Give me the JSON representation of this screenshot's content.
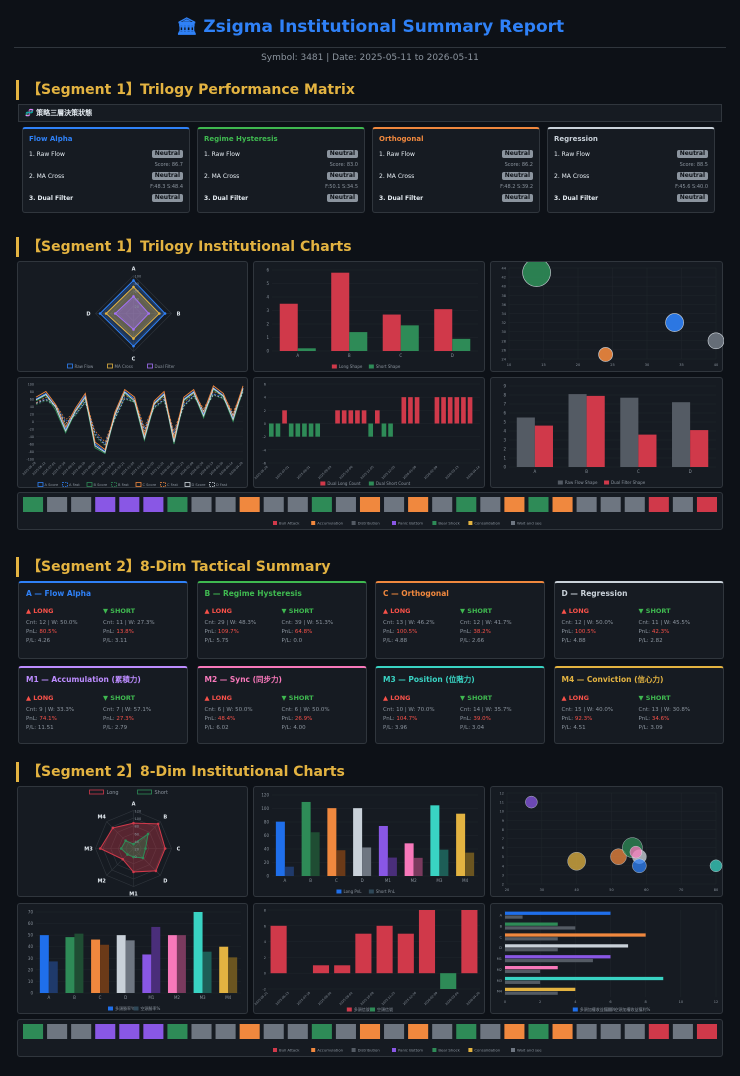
{
  "header": {
    "icon": "🏛",
    "title": "Zsigma Institutional Summary Report",
    "subline": "Symbol: 3481 | Date: 2025-05-11 to 2026-05-11"
  },
  "seg1": {
    "title1": "【Segment 1】Trilogy Performance Matrix",
    "strip_label": "🧬 策略三層決策狀態",
    "cards": [
      {
        "title": "Flow Alpha",
        "color": "#2f81f7",
        "r1": "1. Raw Flow",
        "b1": "Neutral",
        "s1": "Score: 86.7",
        "r2": "2. MA Cross",
        "b2": "Neutral",
        "s2": "F:48.3 S:48.4",
        "r3": "3. Dual Filter",
        "b3": "Neutral"
      },
      {
        "title": "Regime Hysteresis",
        "color": "#3fb950",
        "r1": "1. Raw Flow",
        "b1": "Neutral",
        "s1": "Score: 83.0",
        "r2": "2. MA Cross",
        "b2": "Neutral",
        "s2": "F:50.1 S:34.5",
        "r3": "3. Dual Filter",
        "b3": "Neutral"
      },
      {
        "title": "Orthogonal",
        "color": "#f0883e",
        "r1": "1. Raw Flow",
        "b1": "Neutral",
        "s1": "Score: 86.2",
        "r2": "2. MA Cross",
        "b2": "Neutral",
        "s2": "F:48.2 S:39.2",
        "r3": "3. Dual Filter",
        "b3": "Neutral"
      },
      {
        "title": "Regression",
        "color": "#c9d1d9",
        "r1": "1. Raw Flow",
        "b1": "Neutral",
        "s1": "Score: 88.5",
        "r2": "2. MA Cross",
        "b2": "Neutral",
        "s2": "F:45.6 S:40.0",
        "r3": "3. Dual Filter",
        "b3": "Neutral"
      }
    ],
    "title2": "【Segment 1】Trilogy Institutional Charts"
  },
  "seg2": {
    "title1": "【Segment 2】8-Dim Tactical Summary",
    "long_label": "▲ LONG",
    "short_label": "▼ SHORT",
    "cards": [
      {
        "title": "A — Flow Alpha",
        "color": "#2f81f7",
        "lc": "Cnt: 12 | W: 50.0%",
        "lp": "80.5%",
        "lf": "P/L: 4.26",
        "sc": "Cnt: 11 | W: 27.3%",
        "sp": "13.8%",
        "sf": "P/L: 3.11"
      },
      {
        "title": "B — Regime Hysteresis",
        "color": "#3fb950",
        "lc": "Cnt: 29 | W: 48.3%",
        "lp": "109.7%",
        "lf": "P/L: 5.75",
        "sc": "Cnt: 39 | W: 51.3%",
        "sp": "64.8%",
        "sf": "P/L: 0.0"
      },
      {
        "title": "C — Orthogonal",
        "color": "#f0883e",
        "lc": "Cnt: 13 | W: 46.2%",
        "lp": "100.5%",
        "lf": "P/L: 4.88",
        "sc": "Cnt: 12 | W: 41.7%",
        "sp": "38.2%",
        "sf": "P/L: 2.66"
      },
      {
        "title": "D — Regression",
        "color": "#c9d1d9",
        "lc": "Cnt: 12 | W: 50.0%",
        "lp": "100.5%",
        "lf": "P/L: 4.88",
        "sc": "Cnt: 11 | W: 45.5%",
        "sp": "42.3%",
        "sf": "P/L: 2.82"
      },
      {
        "title": "M1 — Accumulation (累積力)",
        "color": "#bc8cff",
        "lc": "Cnt: 9 | W: 33.3%",
        "lp": "74.1%",
        "lf": "P/L: 11.51",
        "sc": "Cnt: 7 | W: 57.1%",
        "sp": "27.3%",
        "sf": "P/L: 2.79"
      },
      {
        "title": "M2 — Sync (同步力)",
        "color": "#f778ba",
        "lc": "Cnt: 6 | W: 50.0%",
        "lp": "48.4%",
        "lf": "P/L: 6.02",
        "sc": "Cnt: 6 | W: 50.0%",
        "sp": "26.9%",
        "sf": "P/L: 4.00"
      },
      {
        "title": "M3 — Position (位階力)",
        "color": "#39d3c3",
        "lc": "Cnt: 10 | W: 70.0%",
        "lp": "104.7%",
        "lf": "P/L: 3.96",
        "sc": "Cnt: 14 | W: 35.7%",
        "sp": "39.0%",
        "sf": "P/L: 3.04"
      },
      {
        "title": "M4 — Conviction (信心力)",
        "color": "#e3b341",
        "lc": "Cnt: 15 | W: 40.0%",
        "lp": "92.3%",
        "lf": "P/L: 4.51",
        "sc": "Cnt: 13 | W: 30.8%",
        "sp": "34.6%",
        "sf": "P/L: 3.09"
      }
    ],
    "pnl_label": "PnL: ",
    "title2": "【Segment 2】8-Dim Institutional Charts"
  },
  "colors": {
    "red": "#d0394a",
    "green": "#2e8b57",
    "gray": "#6e7681",
    "blue": "#2f81f7",
    "orange": "#f0883e",
    "purple": "#8957e5",
    "yellow": "#e3b341",
    "teal": "#39d3c3"
  },
  "chart_data": [
    {
      "id": "c1_radar",
      "type": "radar",
      "axes": [
        "A",
        "B",
        "C",
        "D"
      ],
      "ticks": [
        "100",
        "80",
        "60",
        "40",
        "20"
      ],
      "series": [
        {
          "name": "Raw Flow",
          "values": [
            87,
            83,
            86,
            88
          ]
        },
        {
          "name": "MA Cross",
          "values": [
            70,
            68,
            66,
            72
          ]
        },
        {
          "name": "Dual Filter",
          "values": [
            45,
            40,
            42,
            48
          ]
        }
      ]
    },
    {
      "id": "c2_bar",
      "type": "bar",
      "categories": [
        "A",
        "B",
        "C",
        "D"
      ],
      "series": [
        {
          "name": "Long Shape",
          "values": [
            3.5,
            5.8,
            2.7,
            3.1
          ]
        },
        {
          "name": "Short Shape",
          "values": [
            0.2,
            1.4,
            1.9,
            0.9
          ]
        }
      ],
      "yticks": [
        "6",
        "5",
        "4",
        "3",
        "2",
        "1",
        "0"
      ]
    },
    {
      "id": "c3_scatter",
      "type": "scatter",
      "xticks": [
        "10",
        "15",
        "20",
        "25",
        "30",
        "35",
        "40"
      ],
      "yticks": [
        "44",
        "42",
        "40",
        "38",
        "36",
        "34",
        "32",
        "30",
        "28",
        "26",
        "24"
      ],
      "points": [
        {
          "x": 14,
          "y": 43,
          "r": 14,
          "c": "green"
        },
        {
          "x": 34,
          "y": 32,
          "r": 9,
          "c": "blue"
        },
        {
          "x": 40,
          "y": 28,
          "r": 8,
          "c": "gray"
        },
        {
          "x": 24,
          "y": 25,
          "r": 7,
          "c": "orange"
        }
      ]
    },
    {
      "id": "c4_line",
      "type": "line",
      "yticks": [
        "100",
        "80",
        "60",
        "40",
        "20",
        "0",
        "-20",
        "-40",
        "-60",
        "-80",
        "-100"
      ],
      "xlabels": [
        "2025-05-28",
        "2025-06-12",
        "2025-07-01",
        "2025-07-16",
        "2025-08-01",
        "2025-08-19",
        "2025-09-03",
        "2025-09-18",
        "2025-10-06",
        "2025-10-21",
        "2025-11-05",
        "2025-11-20",
        "2025-12-05",
        "2025-12-22",
        "2026-01-08",
        "2026-01-23",
        "2026-02-09",
        "2026-02-26",
        "2026-03-13",
        "2026-03-30",
        "2026-04-14",
        "2026-04-29"
      ],
      "series": [
        {
          "name": "A Score",
          "c": "blue",
          "dash": false,
          "values": [
            60,
            75,
            40,
            -20,
            30,
            70,
            -60,
            -80,
            20,
            80,
            60,
            -40,
            50,
            75,
            -50,
            60,
            80,
            20,
            90,
            70,
            10,
            90
          ]
        },
        {
          "name": "A Fast",
          "c": "blue",
          "dash": true,
          "values": [
            50,
            60,
            45,
            0,
            20,
            55,
            -30,
            -60,
            10,
            65,
            55,
            -20,
            40,
            60,
            -30,
            45,
            70,
            30,
            75,
            65,
            20,
            80
          ]
        },
        {
          "name": "B Score",
          "c": "green",
          "dash": false,
          "values": [
            55,
            70,
            30,
            -30,
            25,
            60,
            -70,
            -85,
            15,
            75,
            50,
            -50,
            45,
            70,
            -60,
            55,
            75,
            10,
            85,
            65,
            0,
            85
          ]
        },
        {
          "name": "B Fast",
          "c": "green",
          "dash": true,
          "values": [
            45,
            55,
            40,
            -10,
            15,
            50,
            -40,
            -65,
            5,
            60,
            50,
            -30,
            35,
            55,
            -40,
            40,
            65,
            25,
            70,
            60,
            15,
            75
          ]
        },
        {
          "name": "C Score",
          "c": "orange",
          "dash": false,
          "values": [
            65,
            80,
            45,
            -15,
            35,
            75,
            -55,
            -75,
            25,
            85,
            65,
            -35,
            55,
            80,
            -45,
            65,
            85,
            25,
            95,
            75,
            15,
            95
          ]
        },
        {
          "name": "C Fast",
          "c": "orange",
          "dash": true,
          "values": [
            50,
            65,
            45,
            5,
            25,
            60,
            -25,
            -55,
            15,
            70,
            60,
            -15,
            45,
            65,
            -25,
            50,
            75,
            35,
            80,
            70,
            25,
            85
          ]
        },
        {
          "name": "D Score",
          "c": "white",
          "dash": false,
          "values": [
            58,
            72,
            38,
            -25,
            28,
            65,
            -65,
            -82,
            18,
            78,
            55,
            -45,
            48,
            72,
            -55,
            58,
            78,
            15,
            88,
            68,
            5,
            88
          ]
        },
        {
          "name": "D Fast",
          "c": "white",
          "dash": true,
          "values": [
            48,
            58,
            42,
            -5,
            18,
            52,
            -35,
            -62,
            8,
            62,
            52,
            -25,
            38,
            58,
            -35,
            42,
            68,
            28,
            72,
            62,
            18,
            78
          ]
        }
      ]
    },
    {
      "id": "c5_bar",
      "type": "bar",
      "xlabels": [
        "2025-05-28",
        "2025-07-01",
        "2025-08-01",
        "2025-09-03",
        "2025-10-06",
        "2025-11-05",
        "2025-12-05",
        "2026-01-08",
        "2026-02-09",
        "2026-03-13",
        "2026-04-14"
      ],
      "series": [
        {
          "name": "Dual Long Count",
          "values": [
            0,
            0,
            2,
            0,
            0,
            0,
            0,
            0,
            0,
            0,
            2,
            2,
            2,
            2,
            2,
            0,
            2,
            0,
            0,
            0,
            4,
            4,
            4,
            0,
            0,
            4,
            4,
            4,
            4,
            4,
            4,
            0
          ]
        },
        {
          "name": "Dual Short Count",
          "values": [
            -2,
            -2,
            0,
            -2,
            -2,
            -2,
            -2,
            -2,
            0,
            0,
            0,
            0,
            0,
            0,
            0,
            -2,
            0,
            -2,
            -2,
            0,
            0,
            0,
            0,
            0,
            0,
            0,
            0,
            0,
            0,
            0,
            0,
            0
          ]
        }
      ],
      "yticks": [
        "6",
        "4",
        "2",
        "0",
        "-2",
        "-4",
        "-6"
      ]
    },
    {
      "id": "c6_bar",
      "type": "bar",
      "categories": [
        "A",
        "B",
        "C",
        "D"
      ],
      "series": [
        {
          "name": "Raw Flow Shape",
          "values": [
            5.5,
            8.1,
            7.7,
            7.2
          ]
        },
        {
          "name": "Dual Filter Shape",
          "values": [
            4.6,
            7.9,
            3.6,
            4.1
          ]
        }
      ],
      "yticks": [
        "9",
        "8",
        "7",
        "6",
        "5",
        "4",
        "3",
        "2",
        "1",
        "0"
      ]
    },
    {
      "id": "strip1",
      "type": "heatmap",
      "cells": [
        "green",
        "gray",
        "gray",
        "purple",
        "purple",
        "purple",
        "green",
        "gray",
        "gray",
        "orange",
        "gray",
        "gray",
        "green",
        "gray",
        "orange",
        "gray",
        "orange",
        "gray",
        "green",
        "gray",
        "orange",
        "green",
        "orange",
        "gray",
        "gray",
        "gray",
        "red",
        "gray",
        "red"
      ],
      "legend": [
        "Bull Attack",
        "Accumulation",
        "Distribution",
        "Panic Bottom",
        "Bear Shock",
        "Consolidation",
        "Wait and see"
      ]
    },
    {
      "id": "c7_radar",
      "type": "radar",
      "axes": [
        "A",
        "B",
        "C",
        "D",
        "M1",
        "M2",
        "M3",
        "M4"
      ],
      "ticks": [
        "120",
        "100",
        "80",
        "60",
        "40",
        "20",
        "0"
      ],
      "series": [
        {
          "name": "Long",
          "values": [
            80,
            110,
            100,
            100,
            74,
            48,
            105,
            92
          ]
        },
        {
          "name": "Short",
          "values": [
            14,
            65,
            38,
            42,
            27,
            27,
            39,
            35
          ]
        }
      ]
    },
    {
      "id": "c8_bar",
      "type": "bar",
      "categories": [
        "A",
        "B",
        "C",
        "D",
        "M1",
        "M2",
        "M3",
        "M4"
      ],
      "series": [
        {
          "name": "Long PnL",
          "values": [
            80.5,
            109.7,
            100.5,
            100.5,
            74.1,
            48.4,
            104.7,
            92.3
          ]
        },
        {
          "name": "Short PnL",
          "values": [
            13.8,
            64.8,
            38.2,
            42.3,
            27.3,
            26.9,
            39.0,
            34.6
          ]
        }
      ],
      "yticks": [
        "120",
        "100",
        "80",
        "60",
        "40",
        "20",
        "0"
      ]
    },
    {
      "id": "c9_scatter",
      "type": "scatter",
      "xticks": [
        "20",
        "30",
        "40",
        "50",
        "60",
        "70",
        "80"
      ],
      "yticks": [
        "12",
        "11",
        "10",
        "9",
        "8",
        "7",
        "6",
        "5",
        "4",
        "3",
        "2"
      ],
      "points": [
        {
          "x": 27,
          "y": 11,
          "r": 6,
          "c": "purple"
        },
        {
          "x": 40,
          "y": 4.5,
          "r": 9,
          "c": "yellow"
        },
        {
          "x": 52,
          "y": 5,
          "r": 8,
          "c": "orange"
        },
        {
          "x": 56,
          "y": 6,
          "r": 10,
          "c": "green"
        },
        {
          "x": 58,
          "y": 5,
          "r": 7,
          "c": "white"
        },
        {
          "x": 58,
          "y": 4,
          "r": 7,
          "c": "blue"
        },
        {
          "x": 57,
          "y": 5.5,
          "r": 6,
          "c": "pink"
        },
        {
          "x": 80,
          "y": 4,
          "r": 6,
          "c": "teal"
        }
      ]
    },
    {
      "id": "c10_bar",
      "type": "bar",
      "categories": [
        "A",
        "B",
        "C",
        "D",
        "M1",
        "M2",
        "M3",
        "M4"
      ],
      "series": [
        {
          "name": "多頭勝率%",
          "values": [
            50,
            48.3,
            46.2,
            50,
            33.3,
            50,
            70,
            40
          ]
        },
        {
          "name": "空頭勝率%",
          "values": [
            27.3,
            51.3,
            41.7,
            45.5,
            57.1,
            50,
            35.7,
            30.8
          ]
        }
      ],
      "yticks": [
        "70",
        "60",
        "50",
        "40",
        "30",
        "20",
        "10",
        "0"
      ]
    },
    {
      "id": "c11_bar",
      "type": "bar",
      "xlabels": [
        "2025-05-21",
        "2025-06-13",
        "2025-07-18",
        "2025-08-04",
        "2025-09-02",
        "2025-10-08",
        "2025-11-25",
        "2025-12-26",
        "2026-02-09",
        "2026-03-04",
        "2026-04-20"
      ],
      "series": [
        {
          "name": "多頭信號",
          "values": [
            6,
            0,
            1,
            1,
            5,
            6,
            5,
            8,
            0,
            8
          ]
        },
        {
          "name": "空頭信號",
          "values": [
            0,
            0,
            0,
            0,
            0,
            0,
            0,
            0,
            -2,
            0
          ]
        }
      ],
      "yticks": [
        "8",
        "6",
        "4",
        "2",
        "0",
        "-2"
      ]
    },
    {
      "id": "c12_hbar",
      "type": "bar",
      "categories": [
        "A",
        "B",
        "C",
        "D",
        "M1",
        "M2",
        "M3",
        "M4"
      ],
      "series": [
        {
          "name": "多頭加權收益獲利%",
          "values": [
            6,
            3,
            8,
            7,
            6,
            3,
            9,
            4
          ]
        },
        {
          "name": "空頭加權收益獲利%",
          "values": [
            1,
            4,
            3,
            3,
            5,
            2,
            2,
            3
          ]
        }
      ],
      "xticks": [
        "0",
        "2",
        "4",
        "6",
        "8",
        "10",
        "12"
      ]
    },
    {
      "id": "strip2",
      "type": "heatmap",
      "cells": [
        "green",
        "gray",
        "gray",
        "purple",
        "purple",
        "purple",
        "green",
        "gray",
        "gray",
        "orange",
        "gray",
        "gray",
        "green",
        "gray",
        "orange",
        "gray",
        "orange",
        "gray",
        "green",
        "gray",
        "orange",
        "green",
        "orange",
        "gray",
        "gray",
        "gray",
        "red",
        "gray",
        "red"
      ],
      "legend": [
        "Bull Attack",
        "Accumulation",
        "Distribution",
        "Panic Bottom",
        "Bear Shock",
        "Consolidation",
        "Wait and see"
      ]
    }
  ]
}
